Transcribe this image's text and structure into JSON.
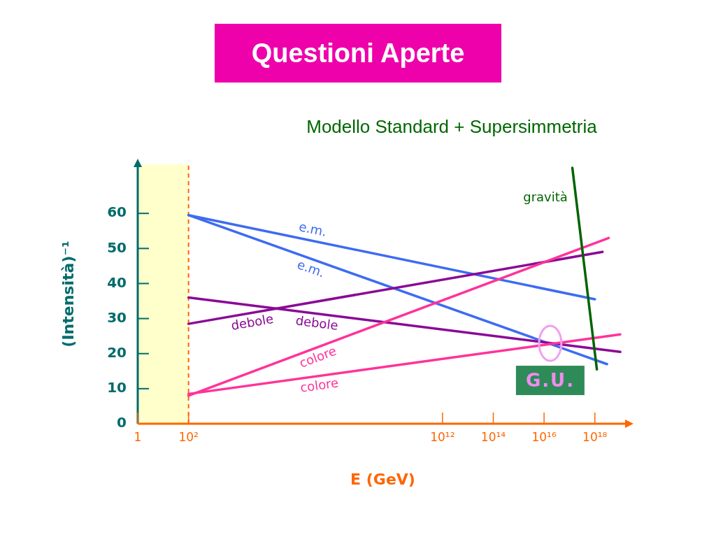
{
  "chart_data": {
    "type": "line",
    "title": "Questioni Aperte",
    "subtitle": "Modello Standard + Supersimmetria",
    "xlabel": "E (GeV)",
    "ylabel": "(Intensità)⁻¹",
    "log": "x",
    "xlim": [
      1,
      2e+19
    ],
    "xticks": [
      1,
      {
        "value": 100,
        "label": "10²"
      },
      {
        "value": 1000000000000.0,
        "label": "10¹²"
      },
      {
        "value": 100000000000000.0,
        "label": "10¹⁴"
      },
      {
        "value": 1e+16,
        "label": "10¹⁶"
      },
      {
        "value": 1e+18,
        "label": "10¹⁸"
      }
    ],
    "ylim": [
      0,
      74
    ],
    "yticks": [
      0,
      10,
      20,
      30,
      40,
      50,
      60
    ],
    "series": [
      {
        "name": "e.m.",
        "color": "#3d6bf2",
        "x": [
          100,
          1e+18
        ],
        "values": [
          59.5,
          35.5
        ]
      },
      {
        "name": "e.m.",
        "color": "#3d6bf2",
        "x": [
          100,
          3e+18
        ],
        "values": [
          59.5,
          17
        ]
      },
      {
        "name": "debole",
        "color": "#8a0a96",
        "x": [
          100,
          1e+19
        ],
        "values": [
          36,
          20.5
        ]
      },
      {
        "name": "debole",
        "color": "#8a0a96",
        "x": [
          100,
          2e+18
        ],
        "values": [
          28.5,
          49
        ]
      },
      {
        "name": "colore",
        "color": "#ff3399",
        "x": [
          100,
          3.5e+18
        ],
        "values": [
          8,
          53
        ]
      },
      {
        "name": "colore",
        "color": "#ff3399",
        "x": [
          100,
          1e+19
        ],
        "values": [
          8.5,
          25.5
        ]
      },
      {
        "name": "gravità",
        "color": "#006400",
        "x": [
          1.3e+17,
          1.2e+18
        ],
        "values": [
          73,
          15.5
        ]
      }
    ],
    "bands": [
      {
        "axis": "x",
        "from": 1,
        "to": 100,
        "color": "#ffffcc"
      }
    ],
    "ref_lines": [
      {
        "axis": "x",
        "value": 100,
        "color": "#ff6600",
        "line_style": "dashed"
      }
    ],
    "annotations": [
      "G.U."
    ]
  }
}
